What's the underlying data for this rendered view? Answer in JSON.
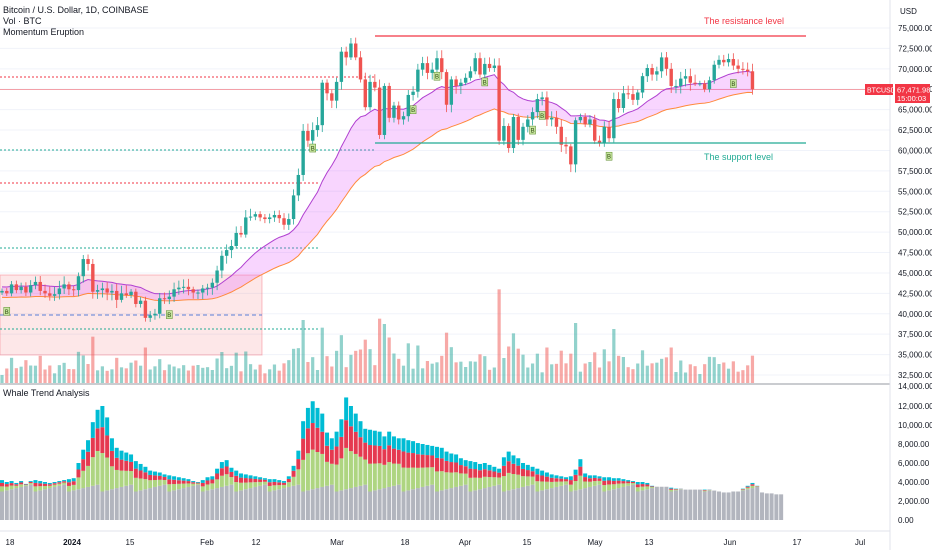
{
  "header": {
    "symbol_line": "Bitcoin / U.S. Dollar, 1D, COINBASE",
    "vol_line": "Vol · BTC",
    "indicator_line": "Momentum Eruption",
    "lower_pane_title": "Whale Trend Analysis",
    "currency": "USD"
  },
  "price_tag": {
    "symbol": "BTCUSD",
    "price": "67,471.98",
    "countdown": "15:00:03",
    "color": "#f23645"
  },
  "annotations": {
    "resistance_label": "The resistance level",
    "support_label": "The support level",
    "resistance_color": "#f23645",
    "support_color": "#22ab94"
  },
  "chart_data": [
    {
      "type": "candlestick",
      "title": "Bitcoin / U.S. Dollar, 1D, COINBASE",
      "ylabel": "USD",
      "ylim": [
        31000,
        76500
      ],
      "y_ticks": [
        "75,000.00",
        "72,500.00",
        "70,000.00",
        "67,500.00",
        "65,000.00",
        "62,500.00",
        "60,000.00",
        "57,500.00",
        "55,000.00",
        "52,500.00",
        "50,000.00",
        "47,500.00",
        "45,000.00",
        "42,500.00",
        "40,000.00",
        "37,500.00",
        "35,000.00",
        "32,500.00"
      ],
      "x_ticks": [
        "18",
        "2024",
        "15",
        "Feb",
        "12",
        "Mar",
        "18",
        "Apr",
        "15",
        "May",
        "13",
        "Jun",
        "17",
        "Jul"
      ],
      "closes": [
        42800,
        42500,
        43600,
        42900,
        43300,
        42600,
        43500,
        43900,
        42800,
        42500,
        42200,
        42400,
        43100,
        43600,
        43000,
        42900,
        44600,
        46700,
        46100,
        42700,
        42900,
        43100,
        42600,
        42800,
        41700,
        42500,
        42300,
        42700,
        41200,
        41600,
        39500,
        39800,
        40000,
        41900,
        41800,
        42100,
        43000,
        43200,
        43300,
        43000,
        42600,
        42600,
        43100,
        43200,
        43800,
        45300,
        47100,
        47800,
        48300,
        49900,
        49700,
        51800,
        51900,
        52200,
        51800,
        51600,
        51800,
        52100,
        51700,
        50900,
        51600,
        54500,
        57000,
        62400,
        61200,
        62500,
        63100,
        68300,
        67000,
        66100,
        68400,
        72100,
        71400,
        73100,
        71400,
        68700,
        65300,
        68400,
        67700,
        61900,
        67900,
        64000,
        65500,
        63800,
        64200,
        66800,
        67200,
        69900,
        70700,
        69500,
        69900,
        71300,
        69600,
        65600,
        68700,
        67900,
        68300,
        68900,
        69700,
        71300,
        69300,
        70600,
        70100,
        70400,
        61200,
        63000,
        60300,
        64100,
        61300,
        62900,
        63800,
        64700,
        66300,
        66500,
        63800,
        64000,
        62900,
        60700,
        60500,
        58300,
        63700,
        64100,
        63200,
        63800,
        61200,
        60900,
        62900,
        61500,
        66300,
        65200,
        67000,
        66900,
        66200,
        67100,
        69100,
        70100,
        69300,
        69700,
        71400,
        70000,
        67900,
        67900,
        68800,
        69100,
        68300,
        68200,
        68200,
        67500,
        68600,
        70500,
        71100,
        70800,
        71200,
        70400,
        70000,
        69900,
        69700,
        67500
      ],
      "support": 61000,
      "resistance": 74000,
      "current": 67471.98,
      "marker_labels": "B"
    },
    {
      "type": "bar",
      "title": "Whale Trend Analysis",
      "ylim": [
        0,
        13500
      ],
      "y_ticks": [
        "12,000.00",
        "10,000.00",
        "8,000.00",
        "6,000.00",
        "4,000.00",
        "2,000.00",
        "0.00"
      ],
      "values": [
        4200,
        4000,
        4100,
        3900,
        4100,
        3800,
        4100,
        4200,
        4100,
        4000,
        3900,
        4000,
        4100,
        4200,
        4300,
        4400,
        6000,
        7400,
        8400,
        10300,
        11600,
        12000,
        10800,
        8600,
        7600,
        7300,
        7100,
        6900,
        6200,
        5900,
        5600,
        5200,
        5100,
        5000,
        4800,
        4700,
        4600,
        4500,
        4400,
        4300,
        4100,
        4000,
        4200,
        4500,
        4600,
        5400,
        6100,
        6300,
        5500,
        5200,
        4900,
        4800,
        4700,
        4600,
        4500,
        4400,
        4300,
        4300,
        4200,
        4100,
        4600,
        5700,
        7300,
        10400,
        11800,
        12500,
        11800,
        11200,
        9200,
        8600,
        9300,
        10600,
        12900,
        12000,
        11200,
        10400,
        9600,
        9500,
        9400,
        9300,
        8800,
        9300,
        8800,
        8600,
        8600,
        8400,
        8300,
        8100,
        8000,
        7900,
        7800,
        7700,
        7600,
        7200,
        7000,
        6900,
        6500,
        6300,
        6200,
        6100,
        5900,
        6000,
        5800,
        5600,
        5400,
        6600,
        7200,
        6800,
        6500,
        6000,
        5800,
        5600,
        5400,
        5200,
        5000,
        4800,
        4700,
        4600,
        4500,
        4600,
        5300,
        6400,
        4900,
        4700,
        4700,
        4600,
        4500,
        4500,
        4400,
        4400,
        4300,
        4200,
        4100,
        4000,
        4000,
        3900,
        3600,
        3500,
        3500,
        3500,
        3400,
        3300,
        3300,
        3200,
        3200,
        3200,
        3200,
        3200,
        3200,
        3100,
        3000,
        2900,
        2900,
        3000,
        3000,
        3300,
        3600,
        3900,
        3600,
        2900,
        2800,
        2800,
        2700,
        2700
      ]
    }
  ]
}
